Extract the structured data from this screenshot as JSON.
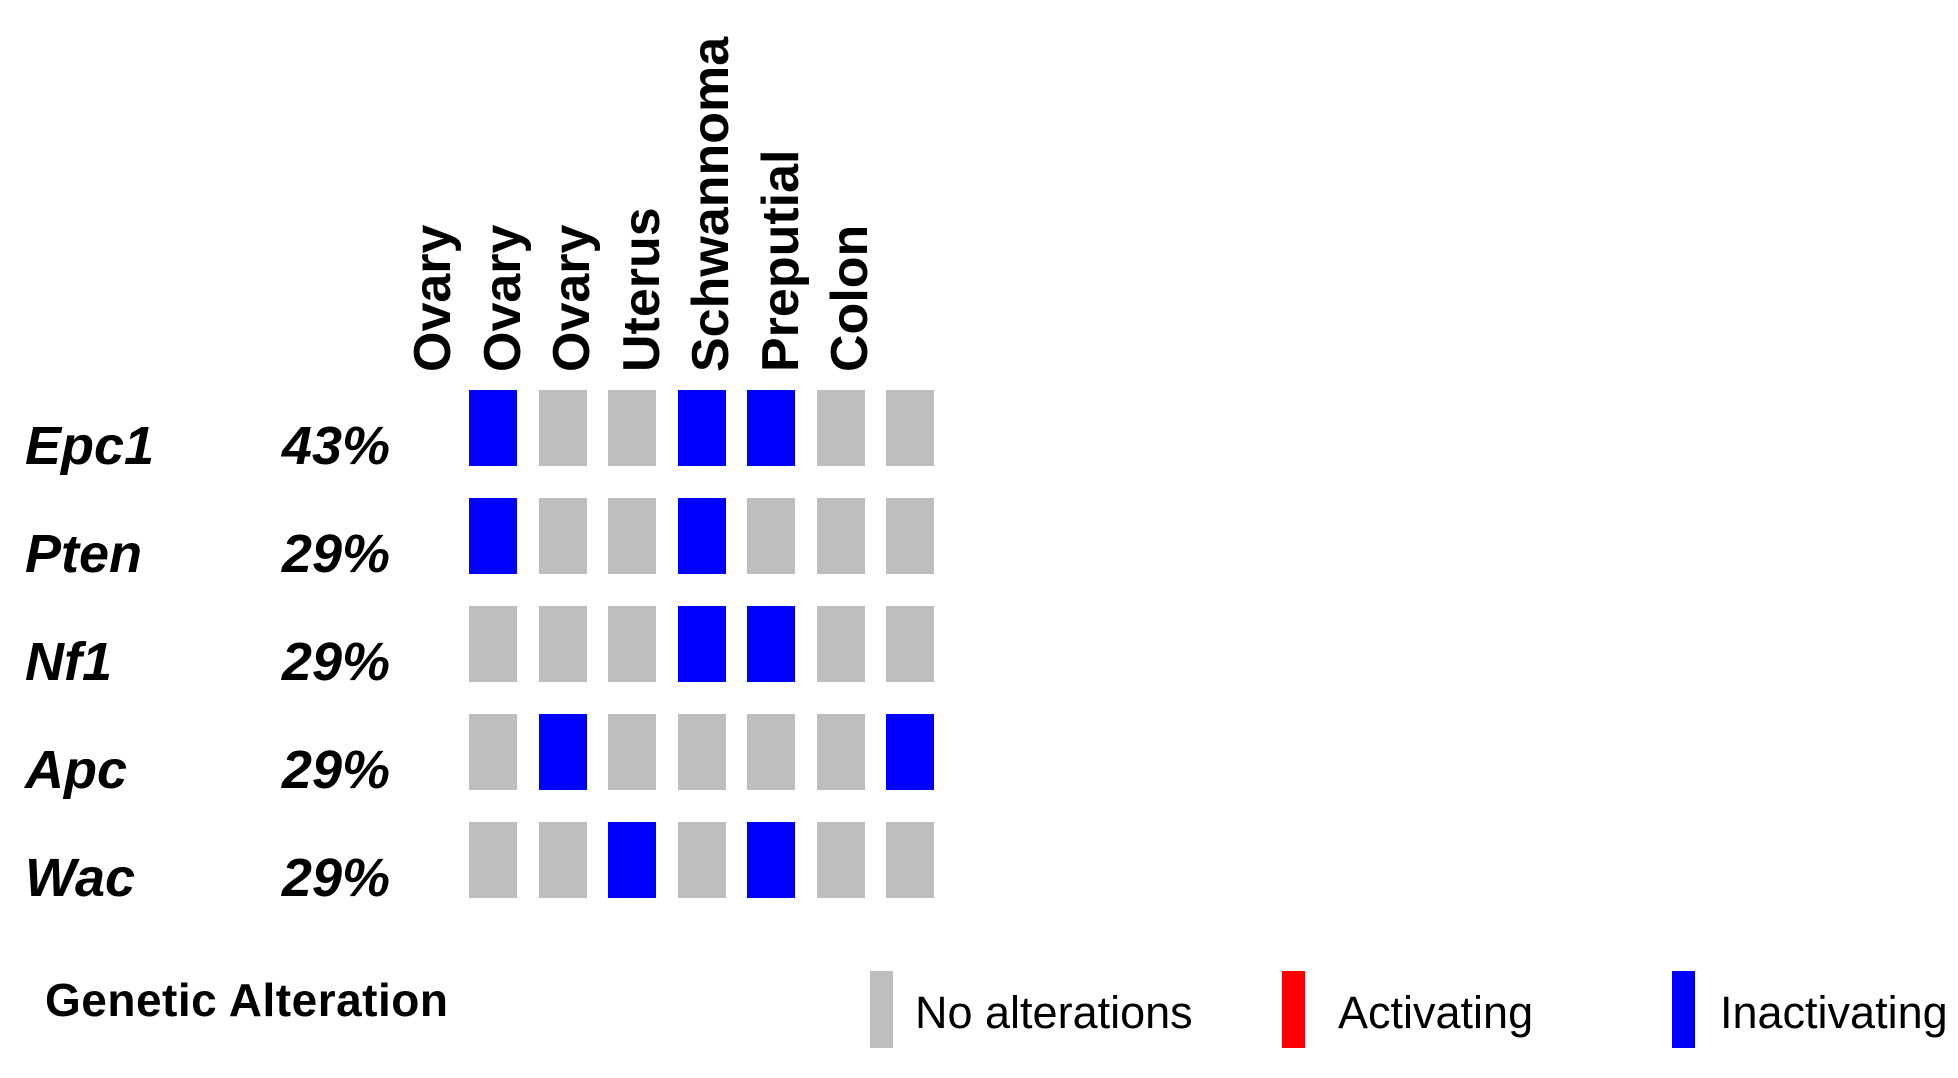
{
  "figure": {
    "kind": "oncoprint"
  },
  "colors": {
    "none": "#BEBEBE",
    "activating": "#FF0000",
    "inactivating": "#0000FF",
    "text": "#000000",
    "background": "#FFFFFF"
  },
  "legend": {
    "title": "Genetic Alteration",
    "items": [
      {
        "label": "No alterations",
        "key": "none"
      },
      {
        "label": "Activating",
        "key": "activating"
      },
      {
        "label": "Inactivating",
        "key": "inactivating"
      }
    ]
  },
  "chart_data": {
    "type": "heatmap",
    "subtype": "oncoprint",
    "title": "",
    "xlabel": "",
    "ylabel": "",
    "grid": false,
    "legend_position": "bottom",
    "columns": [
      "Ovary",
      "Ovary",
      "Ovary",
      "Uterus",
      "Schwannoma",
      "Preputial",
      "Colon"
    ],
    "rows": [
      {
        "gene": "Epc1",
        "percent": "43%",
        "values": [
          "inactivating",
          "none",
          "none",
          "inactivating",
          "inactivating",
          "none",
          "none"
        ]
      },
      {
        "gene": "Pten",
        "percent": "29%",
        "values": [
          "inactivating",
          "none",
          "none",
          "inactivating",
          "none",
          "none",
          "none"
        ]
      },
      {
        "gene": "Nf1",
        "percent": "29%",
        "values": [
          "none",
          "none",
          "none",
          "inactivating",
          "inactivating",
          "none",
          "none"
        ]
      },
      {
        "gene": "Apc",
        "percent": "29%",
        "values": [
          "none",
          "inactivating",
          "none",
          "none",
          "none",
          "none",
          "inactivating"
        ]
      },
      {
        "gene": "Wac",
        "percent": "29%",
        "values": [
          "none",
          "none",
          "inactivating",
          "none",
          "inactivating",
          "none",
          "none"
        ]
      }
    ],
    "cell_states": [
      "none",
      "activating",
      "inactivating"
    ],
    "legend": {
      "title": "Genetic Alteration",
      "entries": [
        {
          "label": "No alterations",
          "color": "#BEBEBE"
        },
        {
          "label": "Activating",
          "color": "#FF0000"
        },
        {
          "label": "Inactivating",
          "color": "#0000FF"
        }
      ]
    }
  }
}
